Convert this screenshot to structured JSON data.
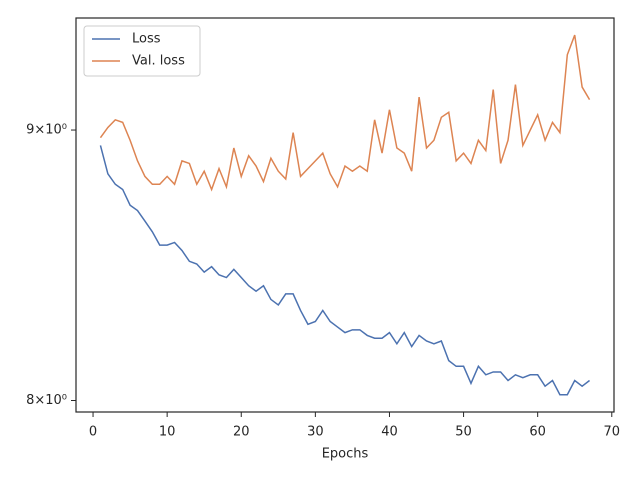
{
  "chart_data": {
    "type": "line",
    "xlabel": "Epochs",
    "x": [
      1,
      2,
      3,
      4,
      5,
      6,
      7,
      8,
      9,
      10,
      11,
      12,
      13,
      14,
      15,
      16,
      17,
      18,
      19,
      20,
      21,
      22,
      23,
      24,
      25,
      26,
      27,
      28,
      29,
      30,
      31,
      32,
      33,
      34,
      35,
      36,
      37,
      38,
      39,
      40,
      41,
      42,
      43,
      44,
      45,
      46,
      47,
      48,
      49,
      50,
      51,
      52,
      53,
      54,
      55,
      56,
      57,
      58,
      59,
      60,
      61,
      62,
      63,
      64,
      65,
      66,
      67
    ],
    "series": [
      {
        "name": "Loss",
        "color": "#4c72b0",
        "values": [
          8.94,
          8.83,
          8.79,
          8.77,
          8.71,
          8.69,
          8.65,
          8.61,
          8.56,
          8.56,
          8.57,
          8.54,
          8.5,
          8.49,
          8.46,
          8.48,
          8.45,
          8.44,
          8.47,
          8.44,
          8.41,
          8.39,
          8.41,
          8.36,
          8.34,
          8.38,
          8.38,
          8.32,
          8.27,
          8.28,
          8.32,
          8.28,
          8.26,
          8.24,
          8.25,
          8.25,
          8.23,
          8.22,
          8.22,
          8.24,
          8.2,
          8.24,
          8.19,
          8.23,
          8.21,
          8.2,
          8.21,
          8.14,
          8.12,
          8.12,
          8.06,
          8.12,
          8.09,
          8.1,
          8.1,
          8.07,
          8.09,
          8.08,
          8.09,
          8.09,
          8.05,
          8.07,
          8.02,
          8.02,
          8.07,
          8.05,
          8.07
        ]
      },
      {
        "name": "Val. loss",
        "color": "#dd8452",
        "values": [
          8.97,
          9.01,
          9.04,
          9.03,
          8.96,
          8.88,
          8.82,
          8.79,
          8.79,
          8.82,
          8.79,
          8.88,
          8.87,
          8.79,
          8.84,
          8.77,
          8.85,
          8.78,
          8.93,
          8.82,
          8.9,
          8.86,
          8.8,
          8.89,
          8.84,
          8.81,
          8.99,
          8.82,
          8.85,
          8.88,
          8.91,
          8.83,
          8.78,
          8.86,
          8.84,
          8.86,
          8.84,
          9.04,
          8.91,
          9.08,
          8.93,
          8.91,
          8.84,
          9.13,
          8.93,
          8.96,
          9.05,
          9.07,
          8.88,
          8.91,
          8.87,
          8.96,
          8.92,
          9.16,
          8.87,
          8.96,
          9.18,
          8.94,
          9.0,
          9.06,
          8.96,
          9.03,
          8.99,
          9.3,
          9.38,
          9.17,
          9.12
        ]
      }
    ],
    "xlim": [
      -2.3,
      70.3
    ],
    "xticks": [
      0,
      10,
      20,
      30,
      40,
      50,
      60,
      70
    ],
    "ylim": [
      7.96,
      9.45
    ],
    "yticks": [
      {
        "value": 8,
        "label": "8×10⁰"
      },
      {
        "value": 9,
        "label": "9×10⁰"
      }
    ],
    "log_y": true,
    "legend": "upper left"
  }
}
